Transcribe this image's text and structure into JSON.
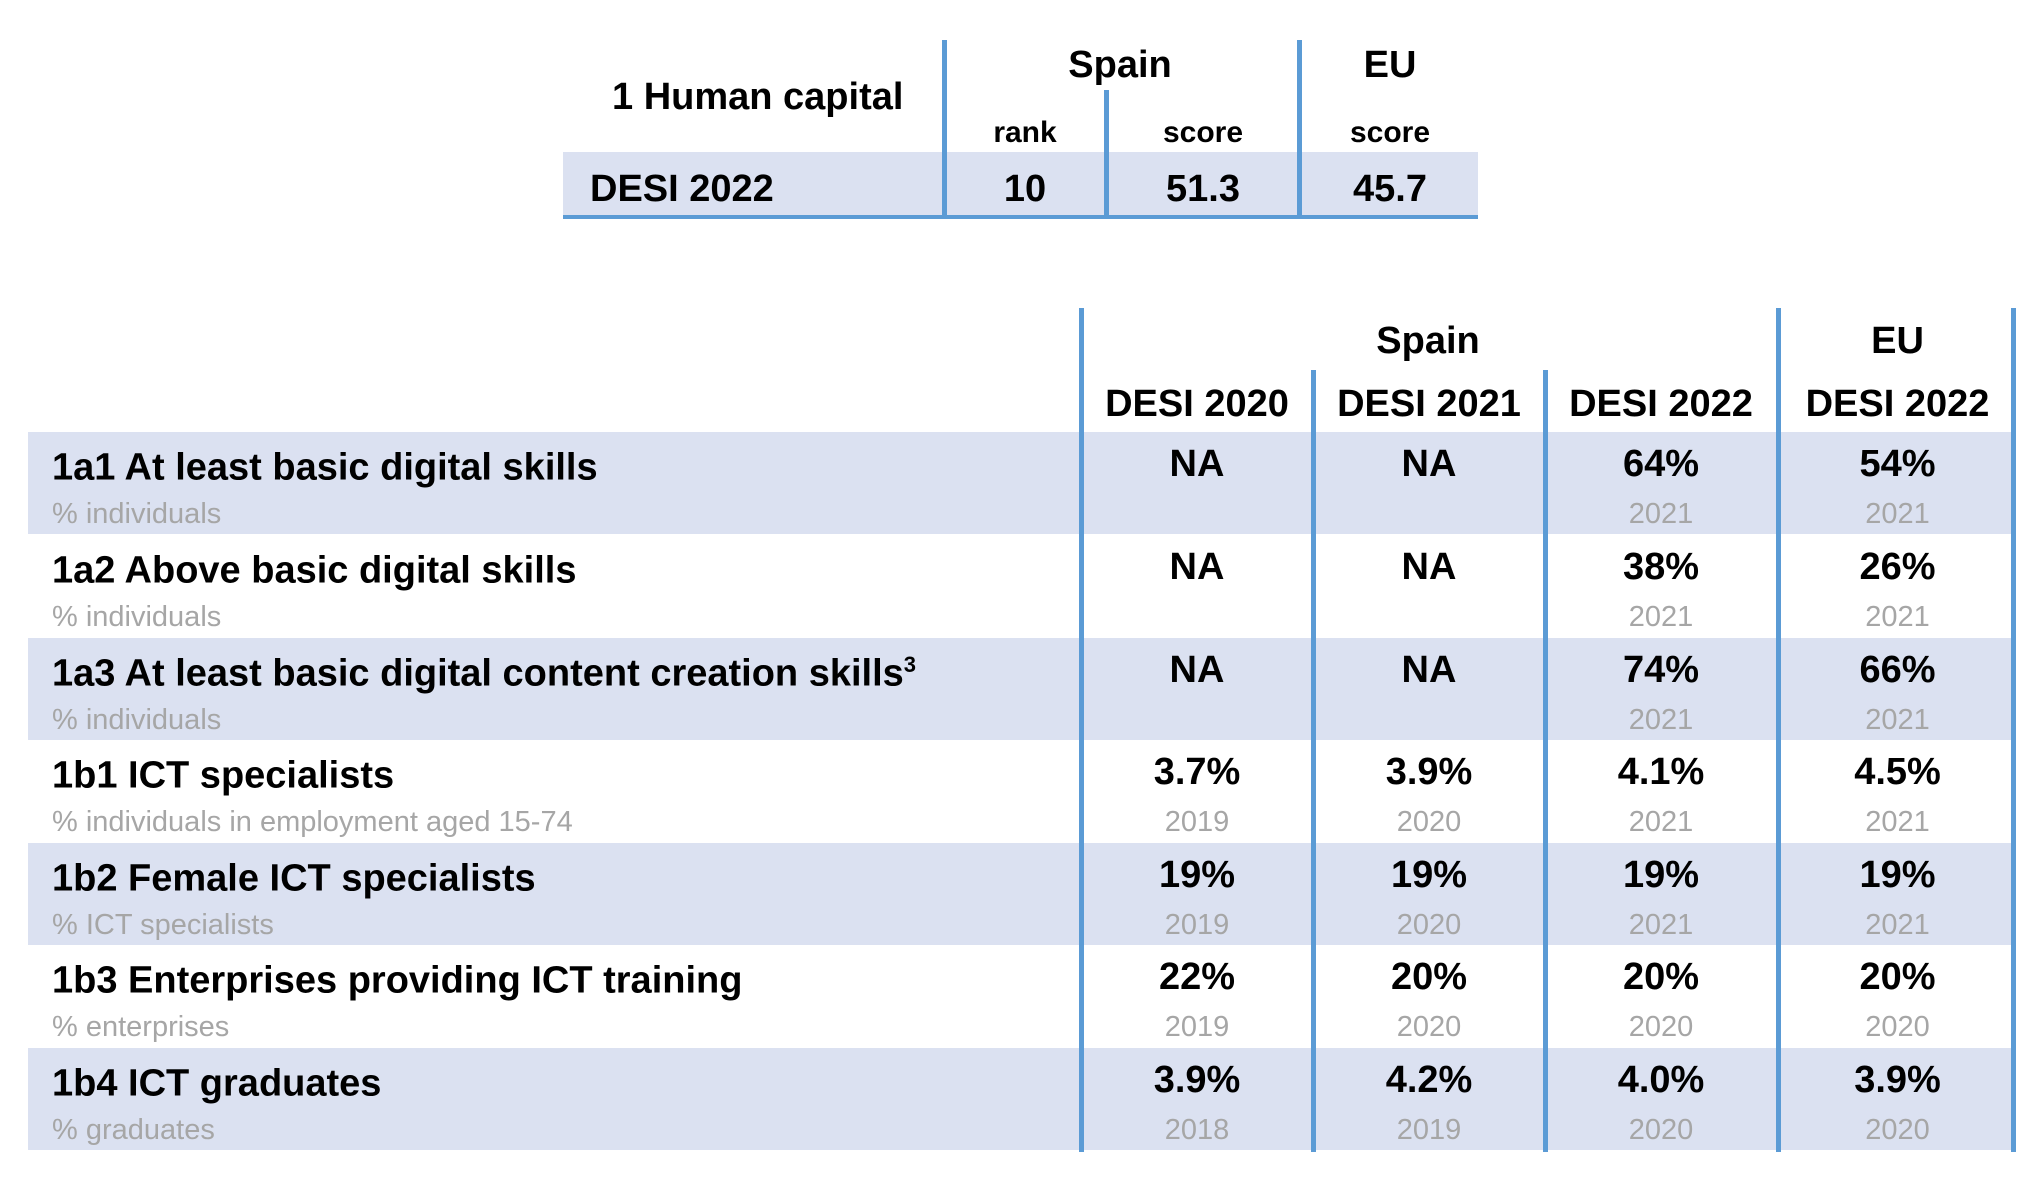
{
  "summary": {
    "title": "1 Human capital",
    "spain_label": "Spain",
    "eu_label": "EU",
    "sub_rank": "rank",
    "sub_score_spain": "score",
    "sub_score_eu": "score",
    "row_label": "DESI 2022",
    "rank": "10",
    "spain_score": "51.3",
    "eu_score": "45.7"
  },
  "detail": {
    "spain_label": "Spain",
    "eu_label": "EU",
    "columns": [
      "DESI 2020",
      "DESI 2021",
      "DESI 2022",
      "DESI 2022"
    ],
    "rows": [
      {
        "label": "1a1 At least basic digital skills",
        "sup": "",
        "unit": "% individuals",
        "values": [
          "NA",
          "NA",
          "64%",
          "54%"
        ],
        "years": [
          "",
          "",
          "2021",
          "2021"
        ]
      },
      {
        "label": "1a2 Above basic digital skills",
        "sup": "",
        "unit": "% individuals",
        "values": [
          "NA",
          "NA",
          "38%",
          "26%"
        ],
        "years": [
          "",
          "",
          "2021",
          "2021"
        ]
      },
      {
        "label": "1a3 At least basic digital content creation skills",
        "sup": "3",
        "unit": "% individuals",
        "values": [
          "NA",
          "NA",
          "74%",
          "66%"
        ],
        "years": [
          "",
          "",
          "2021",
          "2021"
        ]
      },
      {
        "label": "1b1 ICT specialists",
        "sup": "",
        "unit": "% individuals in employment aged 15-74",
        "values": [
          "3.7%",
          "3.9%",
          "4.1%",
          "4.5%"
        ],
        "years": [
          "2019",
          "2020",
          "2021",
          "2021"
        ]
      },
      {
        "label": "1b2 Female ICT specialists",
        "sup": "",
        "unit": "% ICT specialists",
        "values": [
          "19%",
          "19%",
          "19%",
          "19%"
        ],
        "years": [
          "2019",
          "2020",
          "2021",
          "2021"
        ]
      },
      {
        "label": "1b3 Enterprises providing ICT training",
        "sup": "",
        "unit": "% enterprises",
        "values": [
          "22%",
          "20%",
          "20%",
          "20%"
        ],
        "years": [
          "2019",
          "2020",
          "2020",
          "2020"
        ]
      },
      {
        "label": "1b4 ICT graduates",
        "sup": "",
        "unit": "% graduates",
        "values": [
          "3.9%",
          "4.2%",
          "4.0%",
          "3.9%"
        ],
        "years": [
          "2018",
          "2019",
          "2020",
          "2020"
        ]
      }
    ]
  },
  "colors": {
    "band": "#dbe1f1",
    "rule": "#5b9bd5",
    "muted_text": "#a6a6a6"
  }
}
